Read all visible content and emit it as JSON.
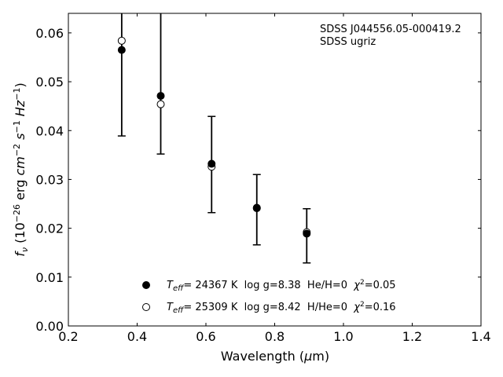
{
  "chart_data": {
    "type": "scatter",
    "annotation": [
      "SDSS J044556.05-000419.2",
      "SDSS ugriz"
    ],
    "xlabel_pre": "Wavelength (",
    "xlabel_mu": "μ",
    "xlabel_post": "m)",
    "ylabel": {
      "f": "f",
      "nu": "ν",
      "a": " (10",
      "exp1": "−26",
      "b": " erg ",
      "cm": "cm",
      "exp2": "−2",
      "c": " ",
      "s": "s",
      "exp3": "−1",
      "d": " ",
      "hz": "Hz",
      "exp4": "−1",
      "e": ")"
    },
    "xlim": [
      0.2,
      1.4
    ],
    "ylim": [
      0.0,
      0.064
    ],
    "xticks": [
      0.2,
      0.4,
      0.6,
      0.8,
      1.0,
      1.2,
      1.4
    ],
    "xtick_labels": [
      "0.2",
      "0.4",
      "0.6",
      "0.8",
      "1.0",
      "1.2",
      "1.4"
    ],
    "yticks": [
      0.0,
      0.01,
      0.02,
      0.03,
      0.04,
      0.05,
      0.06
    ],
    "ytick_labels": [
      "0.00",
      "0.01",
      "0.02",
      "0.03",
      "0.04",
      "0.05",
      "0.06"
    ],
    "observed": {
      "x": [
        0.3551,
        0.4686,
        0.6166,
        0.748,
        0.8932
      ],
      "y": [
        0.0565,
        0.0471,
        0.0332,
        0.0241,
        0.0189
      ],
      "yerr_low": [
        0.0389,
        0.0352,
        0.0232,
        0.0166,
        0.0129
      ],
      "yerr_high": [
        0.0705,
        0.0705,
        0.0429,
        0.031,
        0.024
      ]
    },
    "model_points": {
      "x": [
        0.3551,
        0.4686,
        0.6166,
        0.748,
        0.8932
      ],
      "y": [
        0.0584,
        0.0454,
        0.0326,
        0.0242,
        0.0192
      ]
    },
    "legend": [
      {
        "marker": "filled",
        "T": "T",
        "eff": "eff",
        "text": "= 24367 K  log g=8.38  He/H=0  ",
        "chi": "χ",
        "sq": "2",
        "chival": "=0.05"
      },
      {
        "marker": "open",
        "T": "T",
        "eff": "eff",
        "text": "= 25309 K  log g=8.42  H/He=0  ",
        "chi": "χ",
        "sq": "2",
        "chival": "=0.16"
      }
    ],
    "legend_location": "lower-center",
    "grid": false,
    "colors": {
      "marker_edge": "#000000",
      "filled": "#000000",
      "open": "#ffffff"
    }
  }
}
